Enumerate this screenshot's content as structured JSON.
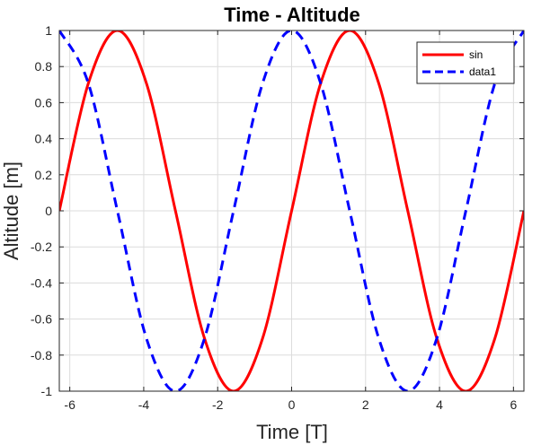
{
  "chart_data": {
    "type": "line",
    "title": "Time - Altitude",
    "xlabel": "Time [T]",
    "ylabel": "Altitude [m]",
    "xlim": [
      -6.2832,
      6.2832
    ],
    "ylim": [
      -1,
      1
    ],
    "xticks": [
      -6,
      -4,
      -2,
      0,
      2,
      4,
      6
    ],
    "yticks": [
      -1,
      -0.8,
      -0.6,
      -0.4,
      -0.2,
      0,
      0.2,
      0.4,
      0.6,
      0.8,
      1
    ],
    "xtick_labels": [
      "-6",
      "-4",
      "-2",
      "0",
      "2",
      "4",
      "6"
    ],
    "ytick_labels": [
      "-1",
      "-0.8",
      "-0.6",
      "-0.4",
      "-0.2",
      "0",
      "0.2",
      "0.4",
      "0.6",
      "0.8",
      "1"
    ],
    "grid": true,
    "legend_position": "top-right",
    "series": [
      {
        "name": "sin",
        "color": "#ff0000",
        "style": "solid",
        "x": [
          -6.2832,
          -5.4978,
          -4.7124,
          -3.927,
          -3.1416,
          -2.3562,
          -1.5708,
          -0.7854,
          0,
          0.7854,
          1.5708,
          2.3562,
          3.1416,
          3.927,
          4.7124,
          5.4978,
          6.2832
        ],
        "y": [
          0,
          0.7071,
          1,
          0.7071,
          0,
          -0.7071,
          -1,
          -0.7071,
          0,
          0.7071,
          1,
          0.7071,
          0,
          -0.7071,
          -1,
          -0.7071,
          0
        ]
      },
      {
        "name": "data1",
        "color": "#0000ff",
        "style": "dashed",
        "x": [
          -6.2832,
          -5.4978,
          -4.7124,
          -3.927,
          -3.1416,
          -2.3562,
          -1.5708,
          -0.7854,
          0,
          0.7854,
          1.5708,
          2.3562,
          3.1416,
          3.927,
          4.7124,
          5.4978,
          6.2832
        ],
        "y": [
          1,
          0.7071,
          0,
          -0.7071,
          -1,
          -0.7071,
          0,
          0.7071,
          1,
          0.7071,
          0,
          -0.7071,
          -1,
          -0.7071,
          0,
          0.7071,
          1
        ]
      }
    ]
  }
}
